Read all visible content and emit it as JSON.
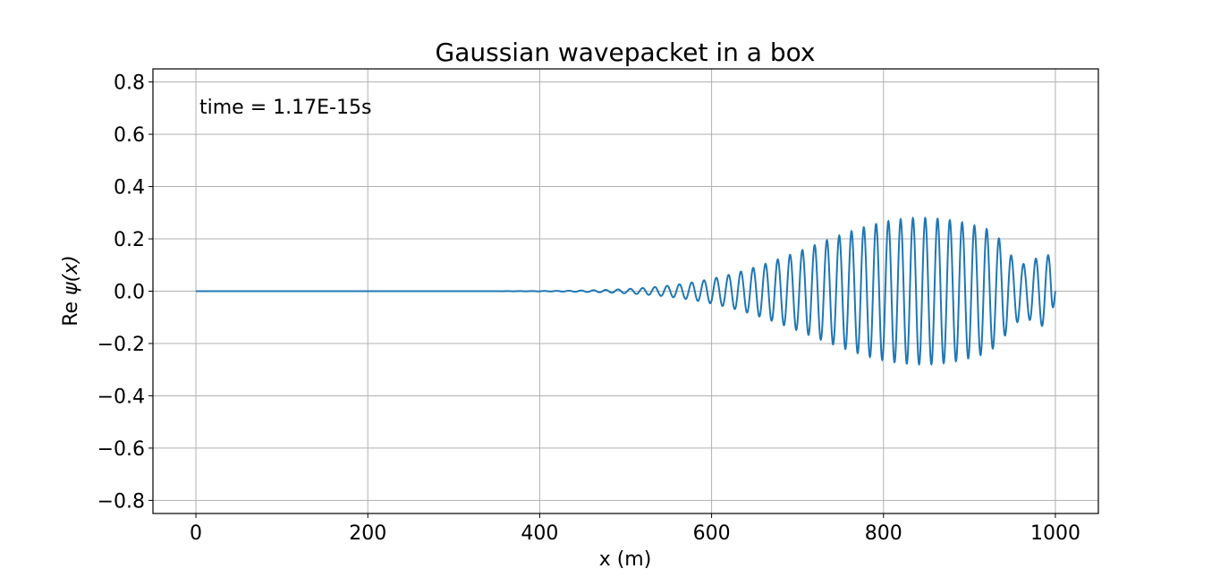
{
  "chart_data": {
    "type": "line",
    "title": "Gaussian wavepacket in a box",
    "xlabel": "x (m)",
    "ylabel_prefix": "Re ",
    "ylabel_math": "ψ(x)",
    "annotation": "time = 1.17E-15s",
    "xlim": [
      -50,
      1050
    ],
    "ylim": [
      -0.85,
      0.85
    ],
    "xticks": [
      0,
      200,
      400,
      600,
      800,
      1000
    ],
    "xtick_labels": [
      "0",
      "200",
      "400",
      "600",
      "800",
      "1000"
    ],
    "yticks": [
      -0.8,
      -0.6,
      -0.4,
      -0.2,
      0.0,
      0.2,
      0.4,
      0.6,
      0.8
    ],
    "ytick_labels": [
      "−0.8",
      "−0.6",
      "−0.4",
      "−0.2",
      "0.0",
      "0.2",
      "0.4",
      "0.6",
      "0.8"
    ],
    "grid": true,
    "series": [
      {
        "color": "#1f77b4",
        "x_range": [
          0,
          1000
        ],
        "envelope_center": 845,
        "envelope_sigma": 130,
        "peak_amplitude": 0.28,
        "oscillation_period": 14.3,
        "wall_interference_region": [
          915,
          1000
        ],
        "wall_amplitudes": {
          "x": [
            915,
            935,
            950,
            965,
            980,
            995,
            1000
          ],
          "amp": [
            0.25,
            0.2,
            0.13,
            0.1,
            0.13,
            0.14,
            0.0
          ]
        }
      }
    ]
  },
  "colors": {
    "line": "#1f77b4",
    "grid": "#b0b0b0",
    "frame": "#000000"
  }
}
